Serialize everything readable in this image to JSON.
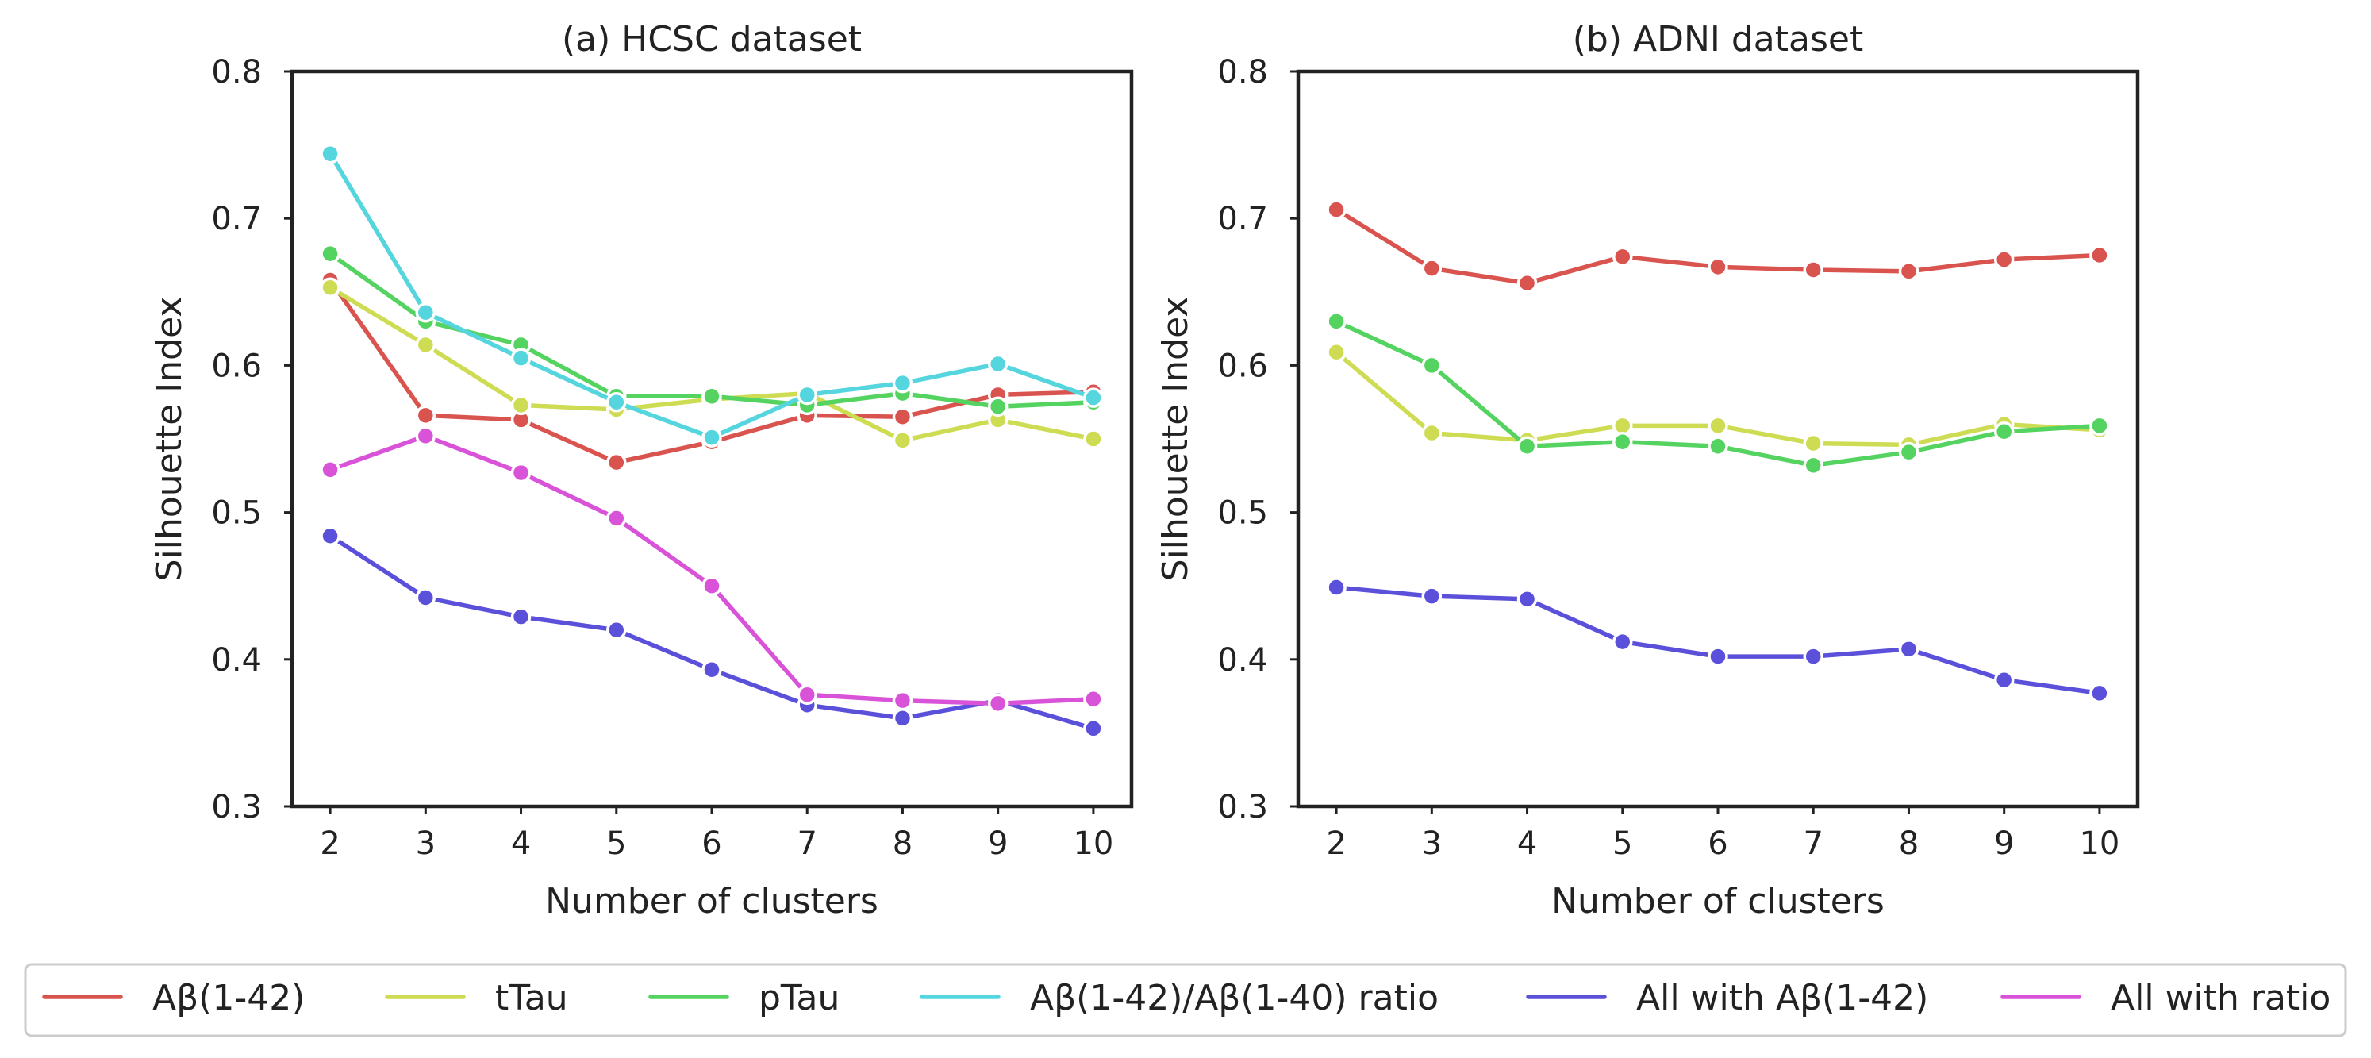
{
  "chart_data": [
    {
      "type": "line",
      "title": "(a) HCSC dataset",
      "xlabel": "Number of clusters",
      "ylabel": "Silhouette Index",
      "x": [
        2,
        3,
        4,
        5,
        6,
        7,
        8,
        9,
        10
      ],
      "ylim": [
        0.3,
        0.8
      ],
      "yticks": [
        "0.3",
        "0.4",
        "0.5",
        "0.6",
        "0.7",
        "0.8"
      ],
      "grid": false,
      "series": [
        {
          "name": "Aβ(1-42)",
          "color": "#d9534f",
          "values": [
            0.658,
            0.566,
            0.563,
            0.534,
            0.548,
            0.566,
            0.565,
            0.58,
            0.582
          ]
        },
        {
          "name": "tTau",
          "color": "#cddc52",
          "values": [
            0.653,
            0.614,
            0.573,
            0.57,
            0.577,
            0.581,
            0.549,
            0.563,
            0.55
          ]
        },
        {
          "name": "pTau",
          "color": "#55d360",
          "values": [
            0.676,
            0.63,
            0.614,
            0.579,
            0.579,
            0.573,
            0.581,
            0.572,
            0.575
          ]
        },
        {
          "name": "Aβ(1-42)/Aβ(1-40) ratio",
          "color": "#55d5dd",
          "values": [
            0.744,
            0.636,
            0.605,
            0.575,
            0.551,
            0.58,
            0.588,
            0.601,
            0.578
          ]
        },
        {
          "name": "All with Aβ(1-42)",
          "color": "#5b50d9",
          "values": [
            0.484,
            0.442,
            0.429,
            0.42,
            0.393,
            0.369,
            0.36,
            0.372,
            0.353
          ]
        },
        {
          "name": "All with ratio",
          "color": "#d953d9",
          "values": [
            0.529,
            0.552,
            0.527,
            0.496,
            0.45,
            0.376,
            0.372,
            0.37,
            0.373
          ]
        }
      ]
    },
    {
      "type": "line",
      "title": "(b) ADNI dataset",
      "xlabel": "Number of clusters",
      "ylabel": "Silhouette Index",
      "x": [
        2,
        3,
        4,
        5,
        6,
        7,
        8,
        9,
        10
      ],
      "ylim": [
        0.3,
        0.8
      ],
      "yticks": [
        "0.3",
        "0.4",
        "0.5",
        "0.6",
        "0.7",
        "0.8"
      ],
      "grid": false,
      "series": [
        {
          "name": "Aβ(1-42)",
          "color": "#d9534f",
          "values": [
            0.706,
            0.666,
            0.656,
            0.674,
            0.667,
            0.665,
            0.664,
            0.672,
            0.675
          ]
        },
        {
          "name": "tTau",
          "color": "#cddc52",
          "values": [
            0.609,
            0.554,
            0.549,
            0.559,
            0.559,
            0.547,
            0.546,
            0.56,
            0.556
          ]
        },
        {
          "name": "pTau",
          "color": "#55d360",
          "values": [
            0.63,
            0.6,
            0.545,
            0.548,
            0.545,
            0.532,
            0.541,
            0.555,
            0.559
          ]
        },
        {
          "name": "All with Aβ(1-42)",
          "color": "#5b50d9",
          "values": [
            0.449,
            0.443,
            0.441,
            0.412,
            0.402,
            0.402,
            0.407,
            0.386,
            0.377
          ]
        }
      ]
    }
  ],
  "legend": {
    "placement": "bottom",
    "entries": [
      {
        "name": "Aβ(1-42)",
        "color": "#d9534f"
      },
      {
        "name": "tTau",
        "color": "#cddc52"
      },
      {
        "name": "pTau",
        "color": "#55d360"
      },
      {
        "name": "Aβ(1-42)/Aβ(1-40) ratio",
        "color": "#55d5dd"
      },
      {
        "name": "All with Aβ(1-42)",
        "color": "#5b50d9"
      },
      {
        "name": "All with ratio",
        "color": "#d953d9"
      }
    ]
  }
}
